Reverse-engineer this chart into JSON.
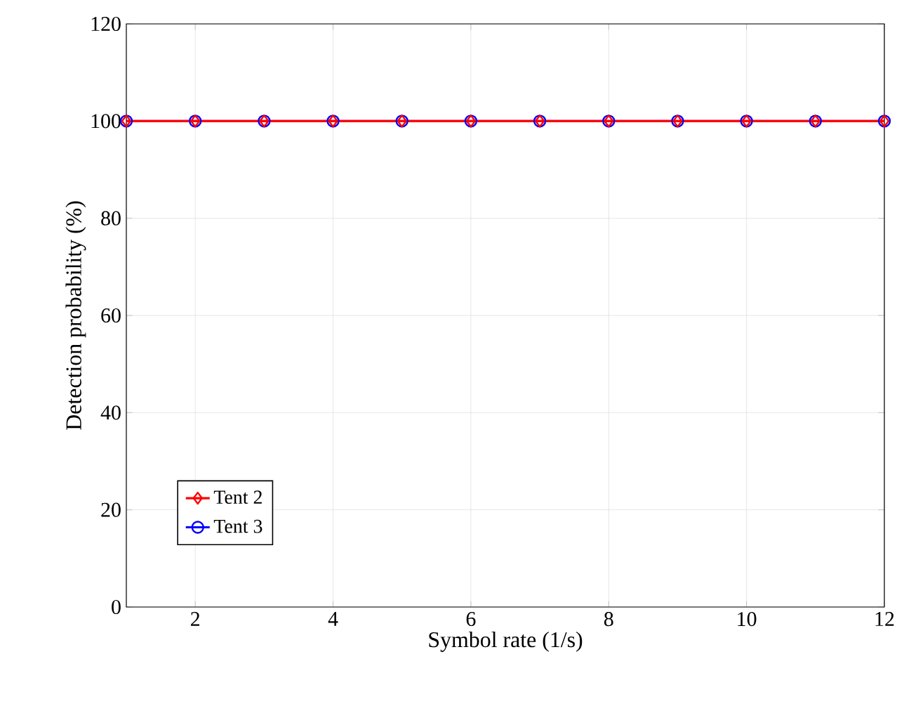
{
  "chart_data": {
    "type": "line",
    "xlabel": "Symbol rate (1/s)",
    "ylabel": "Detection probability (%)",
    "x": [
      1,
      2,
      3,
      4,
      5,
      6,
      7,
      8,
      9,
      10,
      11,
      12
    ],
    "series": [
      {
        "name": "Tent 2",
        "color": "#ff0000",
        "marker": "diamond",
        "values": [
          100,
          100,
          100,
          100,
          100,
          100,
          100,
          100,
          100,
          100,
          100,
          100
        ]
      },
      {
        "name": "Tent 3",
        "color": "#0000ff",
        "marker": "circle",
        "values": [
          100,
          100,
          100,
          100,
          100,
          100,
          100,
          100,
          100,
          100,
          100,
          100
        ]
      }
    ],
    "xlim": [
      1,
      12
    ],
    "xticks": [
      2,
      4,
      6,
      8,
      10,
      12
    ],
    "ylim": [
      0,
      120
    ],
    "yticks": [
      0,
      20,
      40,
      60,
      80,
      100,
      120
    ],
    "grid": true,
    "legend": "bottom left",
    "line_style": "solid"
  }
}
